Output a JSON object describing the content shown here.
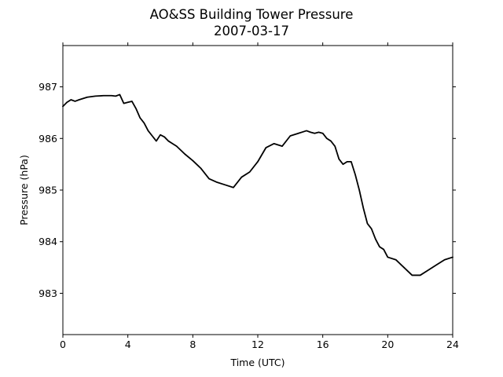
{
  "chart_data": {
    "type": "line",
    "title": "AO&SS Building Tower Pressure",
    "subtitle": "2007-03-17",
    "xlabel": "Time (UTC)",
    "ylabel": "Pressure (hPa)",
    "xlim": [
      0,
      24
    ],
    "ylim": [
      982.2,
      987.8
    ],
    "xticks": [
      0,
      4,
      8,
      12,
      16,
      20,
      24
    ],
    "yticks": [
      983,
      984,
      985,
      986,
      987
    ],
    "grid": false,
    "legend": "none",
    "line_color": "#000000",
    "series": [
      {
        "x": [
          0,
          0.25,
          0.5,
          0.75,
          1,
          1.5,
          2,
          2.5,
          3,
          3.25,
          3.5,
          3.75,
          4,
          4.25,
          4.5,
          4.75,
          5,
          5.25,
          5.5,
          5.75,
          6,
          6.25,
          6.5,
          6.75,
          7,
          7.5,
          8,
          8.5,
          9,
          9.5,
          10,
          10.5,
          11,
          11.5,
          12,
          12.5,
          13,
          13.5,
          14,
          14.5,
          15,
          15.25,
          15.5,
          15.75,
          16,
          16.25,
          16.5,
          16.75,
          17,
          17.25,
          17.5,
          17.75,
          18,
          18.25,
          18.5,
          18.75,
          19,
          19.25,
          19.5,
          19.75,
          20,
          20.5,
          21,
          21.5,
          22,
          22.5,
          23,
          23.5,
          24
        ],
        "y": [
          986.62,
          986.7,
          986.75,
          986.72,
          986.75,
          986.8,
          986.82,
          986.83,
          986.83,
          986.82,
          986.85,
          986.68,
          986.7,
          986.72,
          986.58,
          986.4,
          986.3,
          986.15,
          986.05,
          985.95,
          986.07,
          986.03,
          985.95,
          985.9,
          985.85,
          985.7,
          985.57,
          985.42,
          985.22,
          985.15,
          985.1,
          985.05,
          985.25,
          985.35,
          985.55,
          985.82,
          985.9,
          985.85,
          986.05,
          986.1,
          986.15,
          986.12,
          986.1,
          986.12,
          986.1,
          986.0,
          985.95,
          985.85,
          985.6,
          985.5,
          985.55,
          985.55,
          985.3,
          985.0,
          984.65,
          984.35,
          984.25,
          984.05,
          983.9,
          983.85,
          983.7,
          983.65,
          983.5,
          983.35,
          983.35,
          983.45,
          983.55,
          983.65,
          983.7
        ]
      }
    ]
  }
}
